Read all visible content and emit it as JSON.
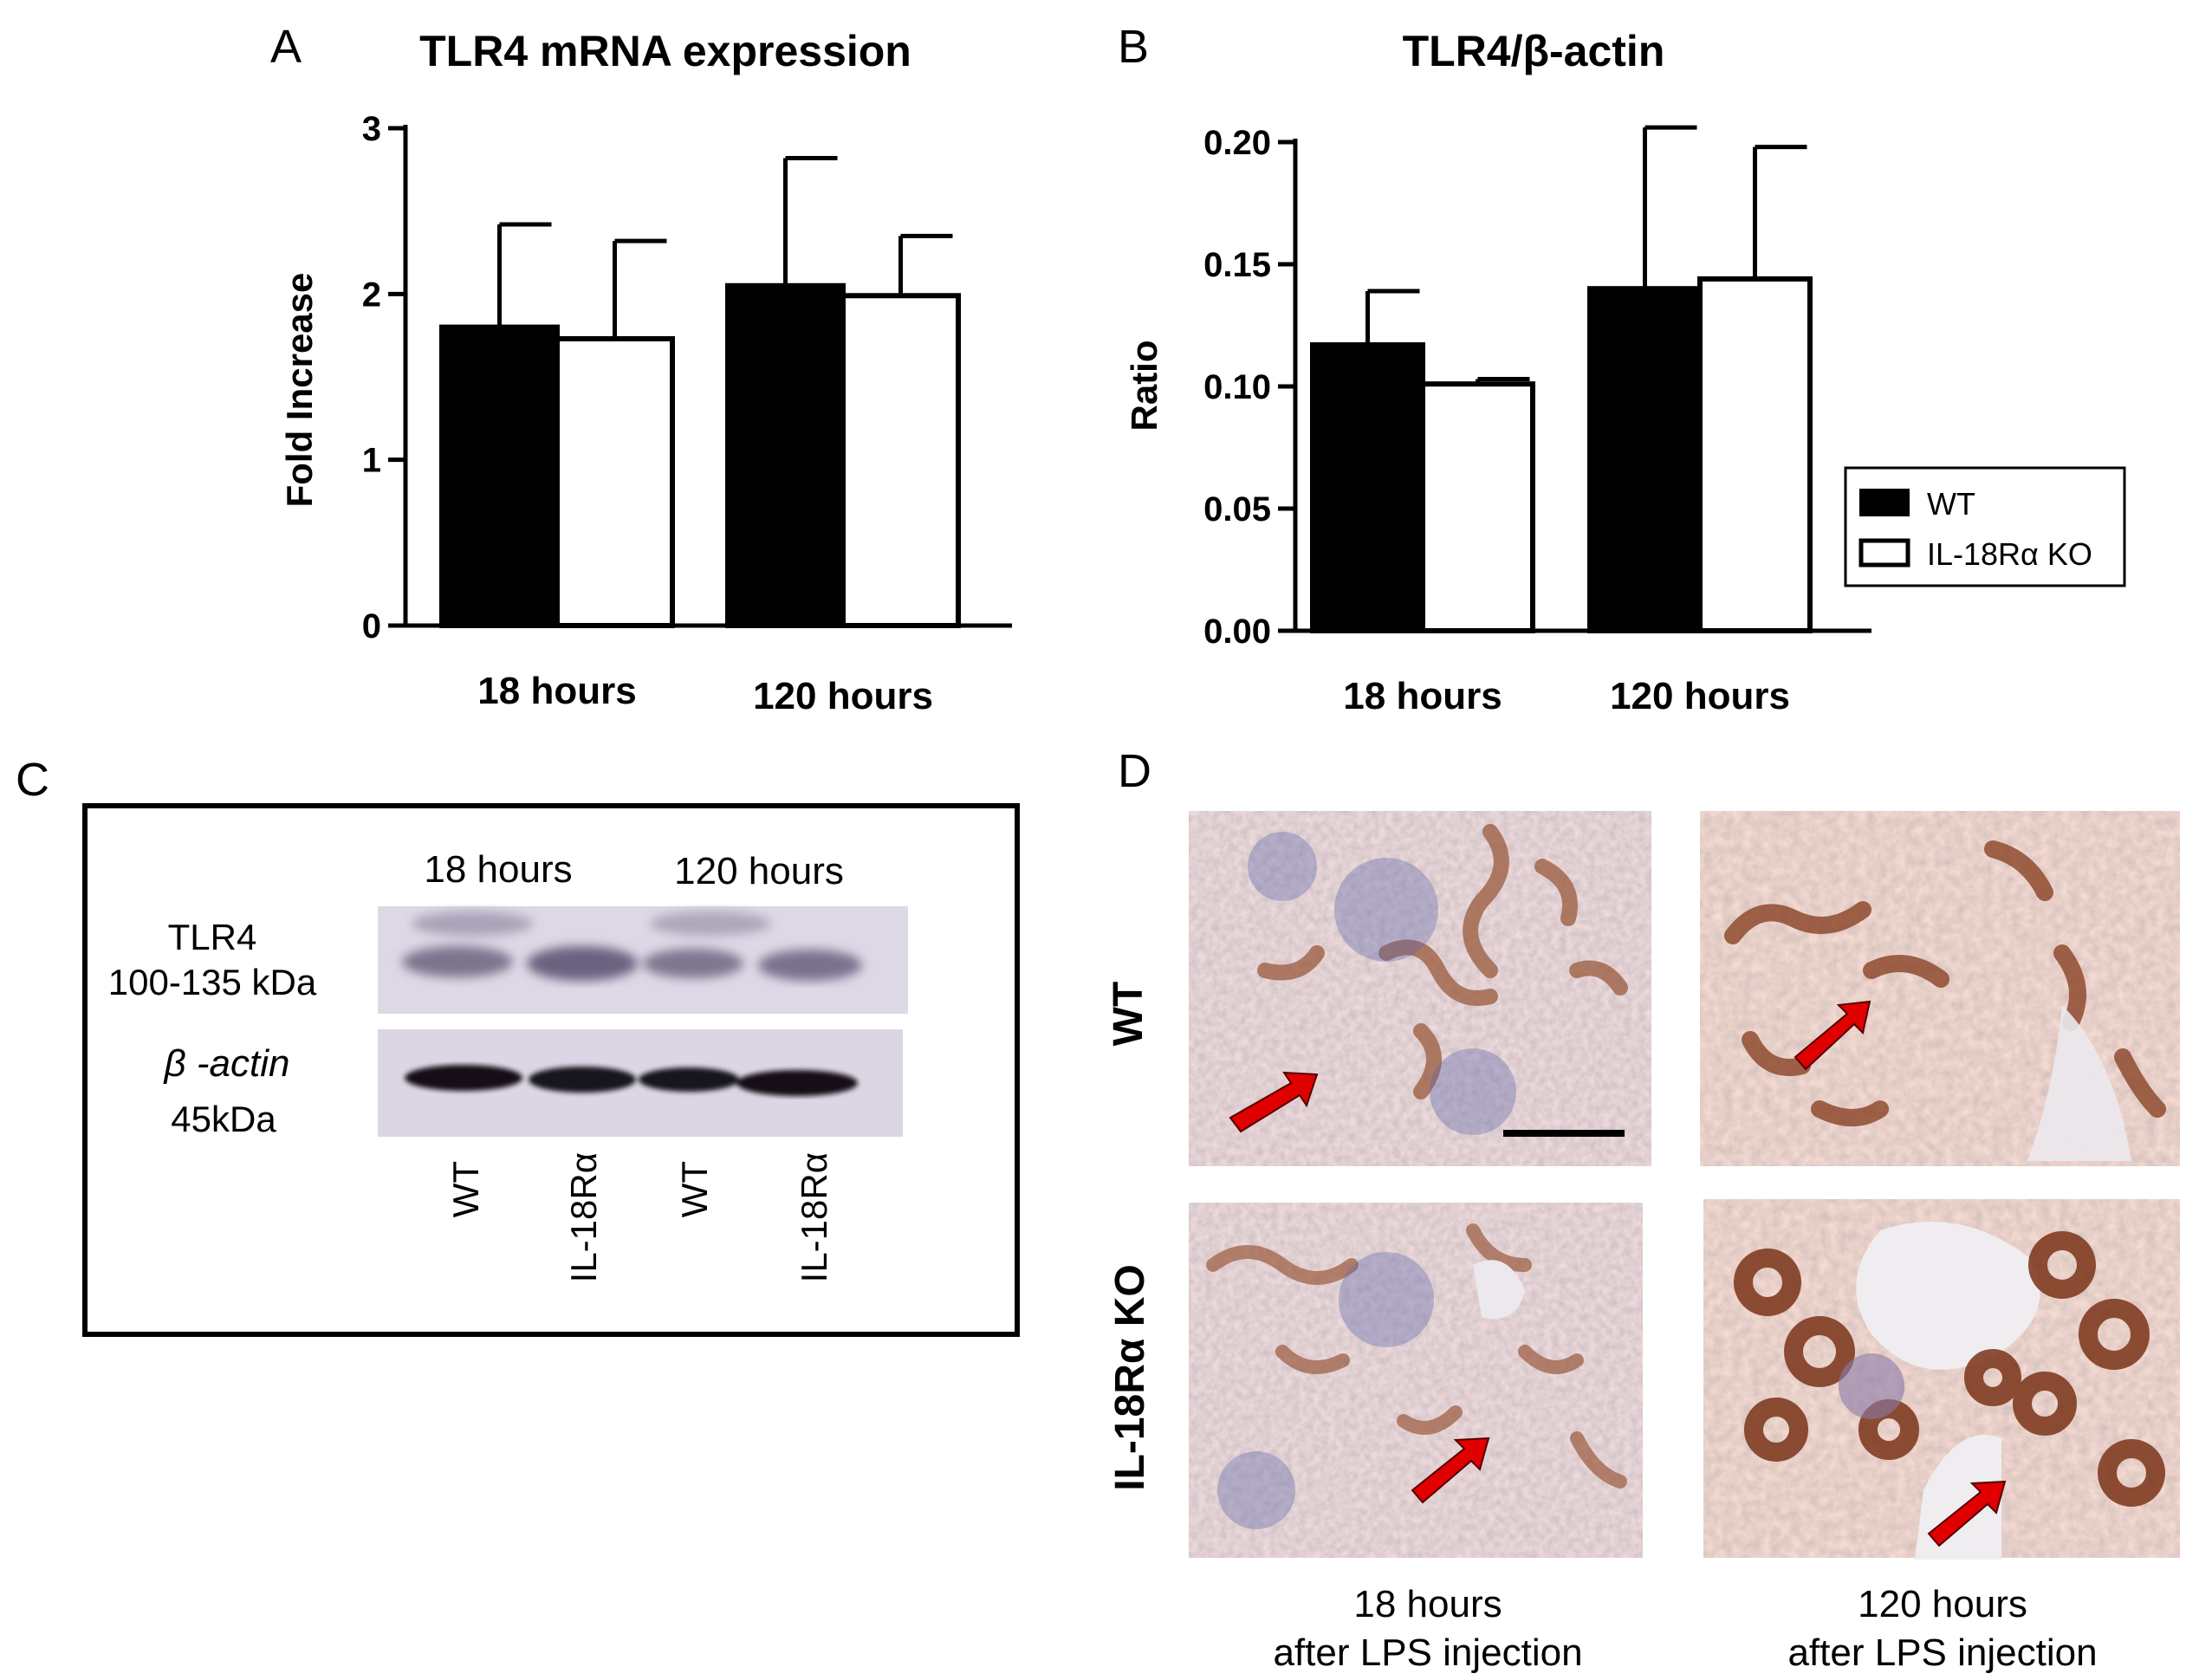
{
  "panel_a": {
    "letter": "A",
    "chart_data": {
      "type": "bar",
      "title": "TLR4 mRNA expression",
      "ylabel": "Fold Increase",
      "xlabel": "",
      "categories": [
        "18 hours",
        "120 hours"
      ],
      "ylim": [
        0,
        3
      ],
      "yticks": [
        "0",
        "1",
        "2",
        "3"
      ],
      "series": [
        {
          "name": "WT",
          "values": [
            1.8,
            2.05
          ],
          "errors": [
            0.62,
            0.77
          ],
          "color": "#000000"
        },
        {
          "name": "IL-18Rα KO",
          "values": [
            1.73,
            1.99
          ],
          "errors": [
            0.59,
            0.36
          ],
          "color": "#ffffff"
        }
      ],
      "grid": false
    }
  },
  "panel_b": {
    "letter": "B",
    "chart_data": {
      "type": "bar",
      "title": "TLR4/β-actin",
      "ylabel": "Ratio",
      "xlabel": "",
      "categories": [
        "18 hours",
        "120 hours"
      ],
      "ylim": [
        0,
        0.2
      ],
      "yticks": [
        "0.00",
        "0.05",
        "0.10",
        "0.15",
        "0.20"
      ],
      "series": [
        {
          "name": "WT",
          "values": [
            0.117,
            0.14
          ],
          "errors": [
            0.022,
            0.066
          ],
          "color": "#000000"
        },
        {
          "name": "IL-18Rα KO",
          "values": [
            0.101,
            0.144
          ],
          "errors": [
            0.002,
            0.054
          ],
          "color": "#ffffff"
        }
      ],
      "legend": {
        "placement": "right",
        "items": [
          "WT",
          "IL-18Rα KO"
        ]
      },
      "grid": false
    }
  },
  "panel_c": {
    "letter": "C",
    "groups": [
      "18 hours",
      "120 hours"
    ],
    "tlr4_name": "TLR4",
    "tlr4_size": "100-135 kDa",
    "actin_name": "β -actin",
    "actin_size": "45kDa",
    "lanes": [
      "WT",
      "IL-18Rα",
      "WT",
      "IL-18Rα"
    ]
  },
  "panel_d": {
    "letter": "D",
    "rows": [
      "WT",
      "IL-18Rα KO"
    ],
    "col1_line1": "18 hours",
    "col1_line2": "after LPS injection",
    "col2_line1": "120 hours",
    "col2_line2": "after LPS injection"
  }
}
